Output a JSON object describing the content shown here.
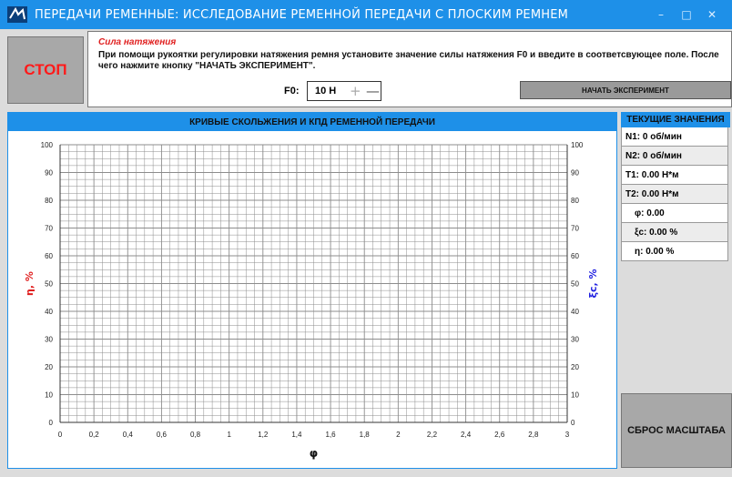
{
  "window": {
    "title": "ПЕРЕДАЧИ РЕМЕННЫЕ: ИССЛЕДОВАНИЕ РЕМЕННОЙ ПЕРЕДАЧИ С ПЛОСКИМ РЕМНЕМ",
    "minimize": "–",
    "maximize": "□",
    "close": "✕"
  },
  "stop_button": "СТОП",
  "instructions": {
    "title": "Сила натяжения",
    "text": "При помощи рукоятки регулировки натяжения ремня установите значение силы натяжения F0 и введите в соответсвующее поле. После чего нажмите кнопку \"НАЧАТЬ ЭКСПЕРИМЕНТ\".",
    "f0_label": "F0:",
    "f0_value": "10 Н",
    "f0_plus": "+",
    "f0_minus": "—",
    "start_button": "НАЧАТЬ ЭКСПЕРИМЕНТ"
  },
  "chart_panel": {
    "header": "КРИВЫЕ СКОЛЬЖЕНИЯ И КПД РЕМЕННОЙ ПЕРЕДАЧИ"
  },
  "chart_data": {
    "type": "line",
    "title": "",
    "xlabel": "φ",
    "ylabel": "η, %",
    "y2label": "ξс, %",
    "xlim": [
      0,
      3
    ],
    "ylim": [
      0,
      100
    ],
    "y2lim": [
      0,
      100
    ],
    "x_ticks": [
      "0",
      "0,2",
      "0,4",
      "0,6",
      "0,8",
      "1",
      "1,2",
      "1,4",
      "1,6",
      "1,8",
      "2",
      "2,2",
      "2,4",
      "2,6",
      "2,8",
      "3"
    ],
    "y_ticks": [
      "0",
      "10",
      "20",
      "30",
      "40",
      "50",
      "60",
      "70",
      "80",
      "90",
      "100"
    ],
    "grid": true,
    "series": [],
    "colors": {
      "ylabel": "#e02020",
      "y2label": "#2020e0",
      "grid": "#8c8c8c"
    }
  },
  "current_values": {
    "header": "ТЕКУЩИЕ ЗНАЧЕНИЯ",
    "rows": [
      "N1: 0 об/мин",
      "N2: 0 об/мин",
      "T1: 0.00 Н*м",
      "T2: 0.00 Н*м",
      "φ: 0.00",
      "ξс: 0.00 %",
      "η: 0.00 %"
    ]
  },
  "reset_button": "СБРОС МАСШТАБА",
  "colors": {
    "accent": "#1E90E8",
    "stop_text": "#ff1a1a"
  }
}
